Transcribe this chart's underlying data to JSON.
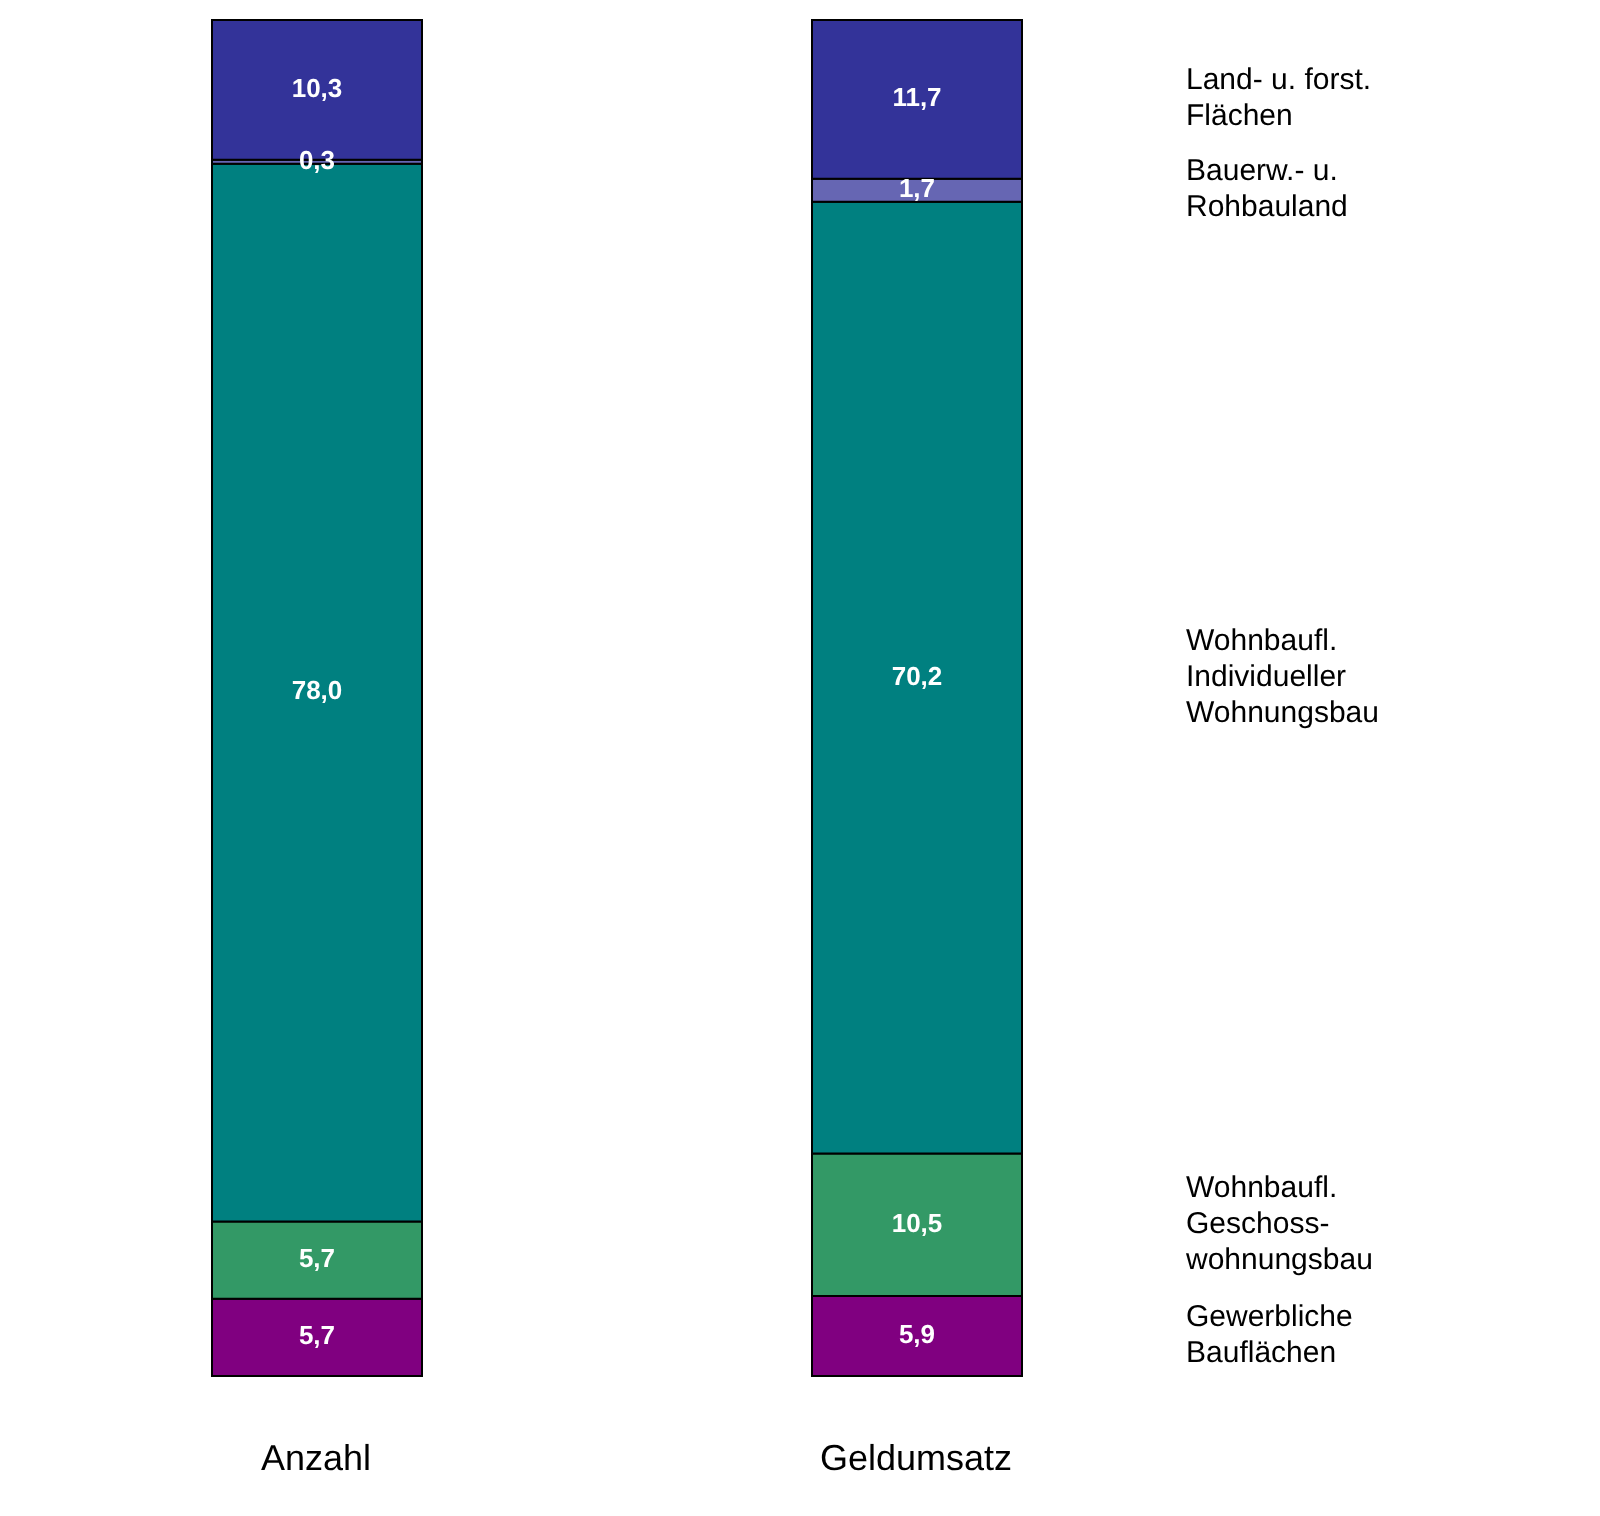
{
  "chart_data": {
    "type": "bar",
    "stacked": true,
    "categories": [
      "Anzahl",
      "Geldumsatz"
    ],
    "series": [
      {
        "name": "Gewerbliche Bauflächen",
        "color": "#800080",
        "values": [
          5.7,
          5.9
        ],
        "value_labels": [
          "5,7",
          "5,9"
        ]
      },
      {
        "name": "Wohnbaufl. Geschoss-wohnungsbau",
        "color": "#339966",
        "values": [
          5.7,
          10.5
        ],
        "value_labels": [
          "5,7",
          "10,5"
        ]
      },
      {
        "name": "Wohnbaufl. Individueller Wohnungsbau",
        "color": "#008080",
        "values": [
          78.0,
          70.2
        ],
        "value_labels": [
          "78,0",
          "70,2"
        ]
      },
      {
        "name": "Bauerw.- u. Rohbauland",
        "color": "#6666b3",
        "values": [
          0.3,
          1.7
        ],
        "value_labels": [
          "0,3",
          "1,7"
        ]
      },
      {
        "name": "Land- u. forst. Flächen",
        "color": "#333399",
        "values": [
          10.3,
          11.7
        ],
        "value_labels": [
          "10,3",
          "11,7"
        ]
      }
    ]
  }
}
